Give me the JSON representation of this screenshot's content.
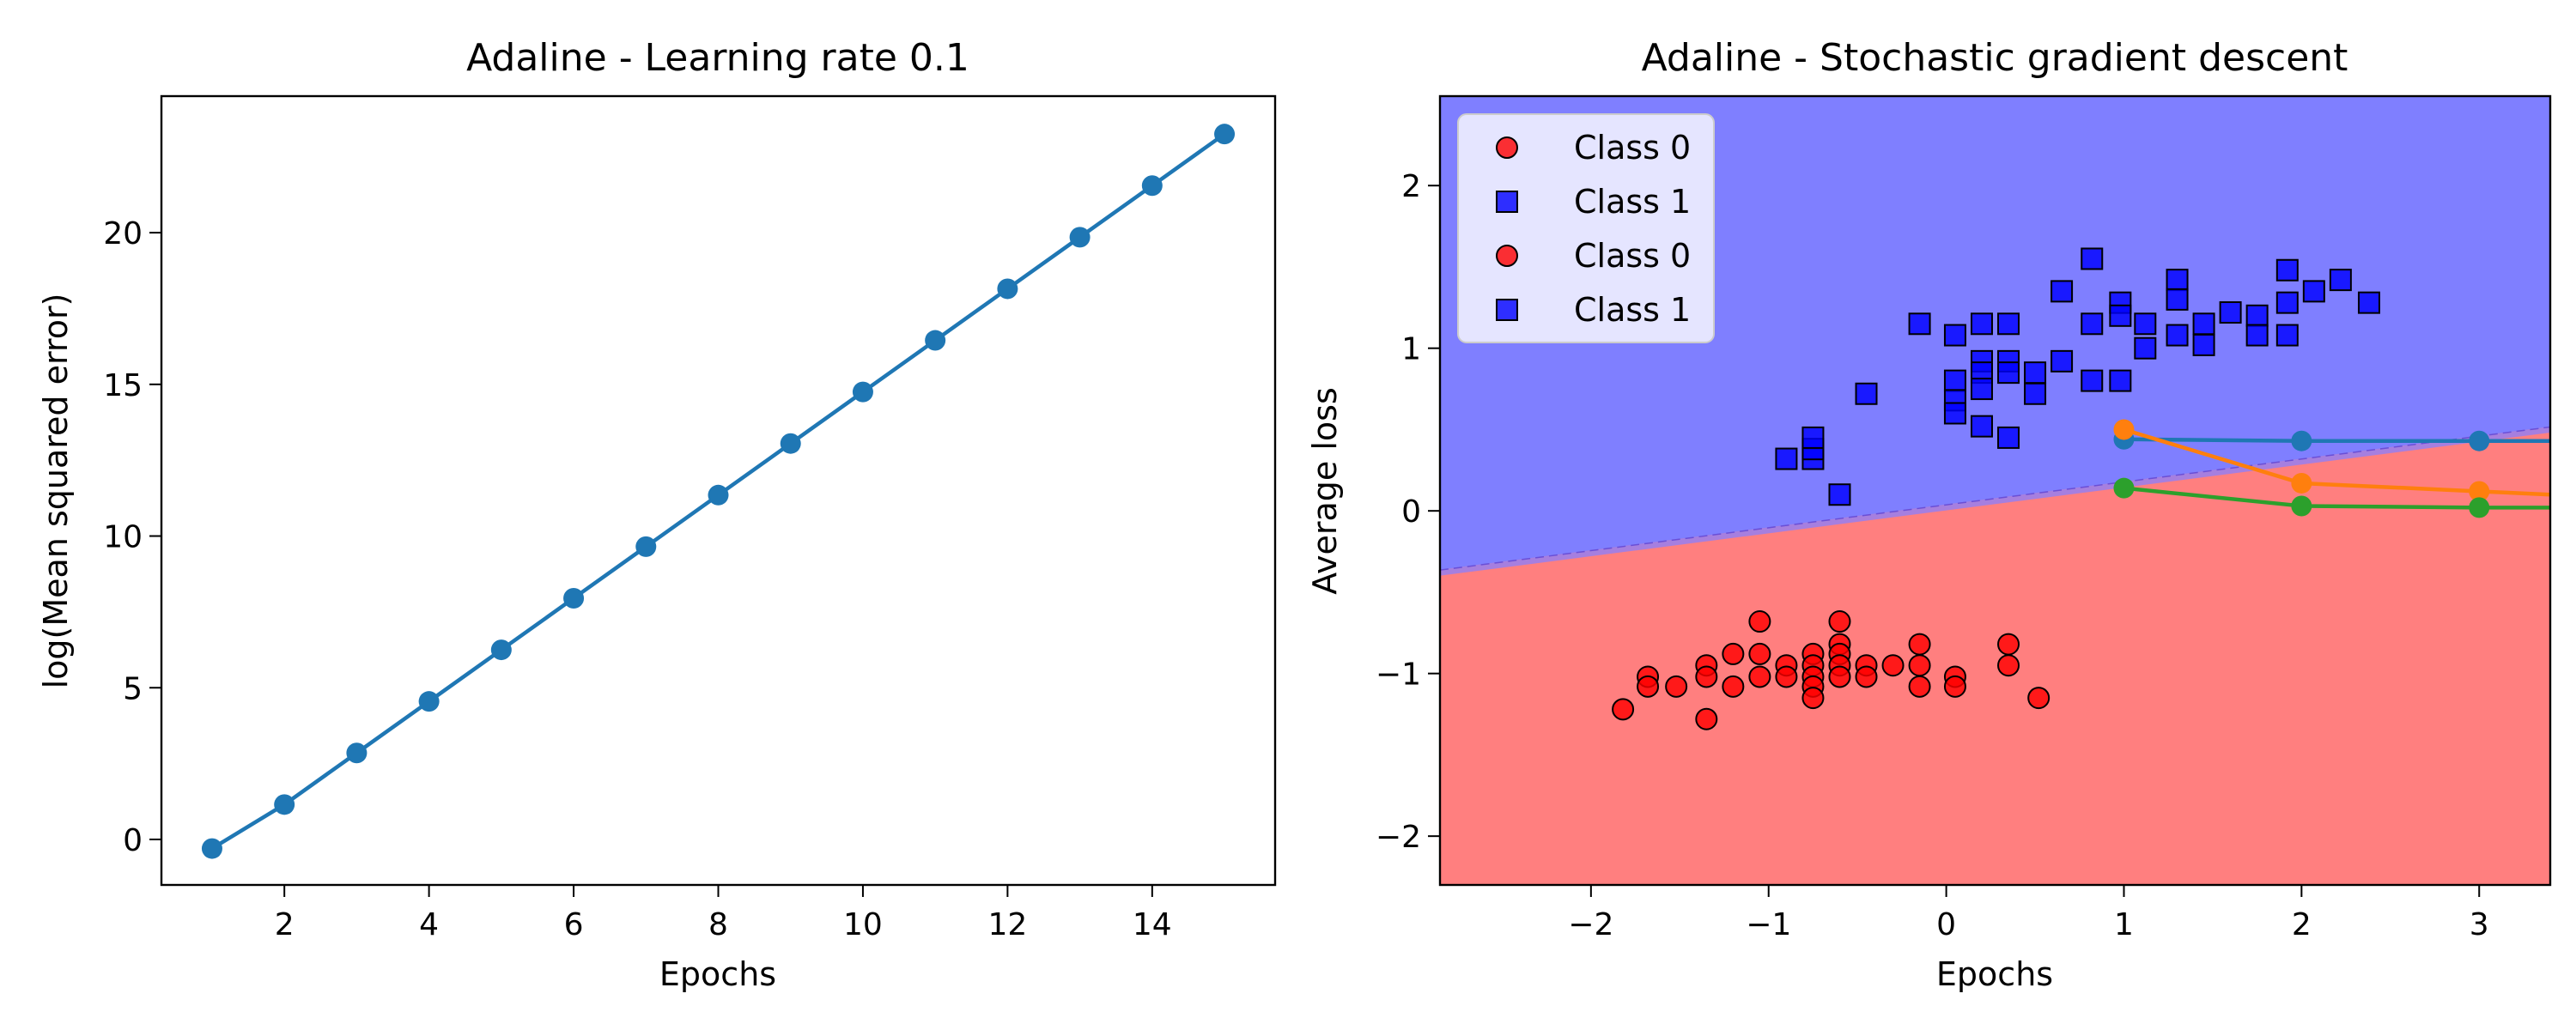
{
  "colors": {
    "line_blue": "#1f77b4",
    "orange": "#ff7f0e",
    "green": "#2ca02c",
    "class0": "#ff0000",
    "class1": "#0000ff",
    "region_class0": "#ff7f7f",
    "region_class1": "#7f7fff",
    "boundary": "#a67fdf"
  },
  "chart_data": [
    {
      "type": "line",
      "title": "Adaline - Learning rate 0.1",
      "xlabel": "Epochs",
      "ylabel": "log(Mean squared error)",
      "xlim": [
        0.3,
        15.7
      ],
      "ylim": [
        -1.5,
        24.5
      ],
      "xticks": [
        2,
        4,
        6,
        8,
        10,
        12,
        14
      ],
      "yticks": [
        0,
        5,
        10,
        15,
        20
      ],
      "grid": false,
      "x": [
        1,
        2,
        3,
        4,
        5,
        6,
        7,
        8,
        9,
        10,
        11,
        12,
        13,
        14,
        15
      ],
      "y": [
        -0.3,
        1.15,
        2.85,
        4.55,
        6.25,
        7.95,
        9.65,
        11.35,
        13.05,
        14.75,
        16.45,
        18.15,
        19.85,
        21.55,
        23.25
      ],
      "marker": "circle"
    },
    {
      "type": "scatter",
      "title": "Adaline - Stochastic gradient descent",
      "xlabel": "Epochs",
      "ylabel": "Average loss",
      "xlim": [
        -2.85,
        3.4
      ],
      "ylim": [
        -2.3,
        2.55
      ],
      "xticks": [
        -2,
        -1,
        0,
        1,
        2,
        3
      ],
      "xtick_labels": [
        "−2",
        "−1",
        "0",
        "1",
        "2",
        "3"
      ],
      "yticks": [
        -2,
        -1,
        0,
        1,
        2
      ],
      "ytick_labels": [
        "−2",
        "−1",
        "0",
        "1",
        "2"
      ],
      "grid": false,
      "legend_position": "top-left",
      "legend": [
        "Class 0",
        "Class 1",
        "Class 0",
        "Class 1"
      ],
      "decision_boundary": [
        [
          -2.85,
          -0.38
        ],
        [
          3.4,
          0.5
        ]
      ],
      "regions": [
        {
          "label": "Class 1",
          "side": "above"
        },
        {
          "label": "Class 0",
          "side": "below"
        }
      ],
      "scatter_series": [
        {
          "name": "Class 0",
          "marker": "circle",
          "points": [
            [
              -1.82,
              -1.22
            ],
            [
              -1.68,
              -1.02
            ],
            [
              -1.68,
              -1.08
            ],
            [
              -1.52,
              -1.08
            ],
            [
              -1.35,
              -1.28
            ],
            [
              -1.35,
              -0.95
            ],
            [
              -1.35,
              -1.02
            ],
            [
              -1.2,
              -0.88
            ],
            [
              -1.2,
              -1.08
            ],
            [
              -1.05,
              -0.68
            ],
            [
              -1.05,
              -0.88
            ],
            [
              -1.05,
              -1.02
            ],
            [
              -0.9,
              -0.95
            ],
            [
              -0.9,
              -1.02
            ],
            [
              -0.75,
              -0.88
            ],
            [
              -0.75,
              -0.95
            ],
            [
              -0.75,
              -1.02
            ],
            [
              -0.75,
              -1.08
            ],
            [
              -0.75,
              -1.15
            ],
            [
              -0.6,
              -0.68
            ],
            [
              -0.6,
              -0.82
            ],
            [
              -0.6,
              -0.88
            ],
            [
              -0.6,
              -0.95
            ],
            [
              -0.6,
              -1.02
            ],
            [
              -0.45,
              -0.95
            ],
            [
              -0.45,
              -1.02
            ],
            [
              -0.3,
              -0.95
            ],
            [
              -0.15,
              -0.82
            ],
            [
              -0.15,
              -0.95
            ],
            [
              -0.15,
              -1.08
            ],
            [
              0.05,
              -1.02
            ],
            [
              0.05,
              -1.08
            ],
            [
              0.35,
              -0.82
            ],
            [
              0.35,
              -0.95
            ],
            [
              0.52,
              -1.15
            ]
          ]
        },
        {
          "name": "Class 1",
          "marker": "square",
          "points": [
            [
              -0.9,
              0.32
            ],
            [
              -0.75,
              0.32
            ],
            [
              -0.75,
              0.38
            ],
            [
              -0.75,
              0.45
            ],
            [
              -0.6,
              0.1
            ],
            [
              -0.45,
              0.72
            ],
            [
              -0.15,
              1.15
            ],
            [
              0.05,
              1.08
            ],
            [
              0.05,
              0.8
            ],
            [
              0.05,
              0.68
            ],
            [
              0.05,
              0.6
            ],
            [
              0.2,
              1.15
            ],
            [
              0.2,
              0.92
            ],
            [
              0.2,
              0.85
            ],
            [
              0.2,
              0.75
            ],
            [
              0.2,
              0.52
            ],
            [
              0.35,
              1.15
            ],
            [
              0.35,
              0.92
            ],
            [
              0.35,
              0.85
            ],
            [
              0.35,
              0.45
            ],
            [
              0.5,
              0.85
            ],
            [
              0.5,
              0.72
            ],
            [
              0.65,
              1.35
            ],
            [
              0.65,
              0.92
            ],
            [
              0.82,
              1.55
            ],
            [
              0.82,
              1.15
            ],
            [
              0.82,
              0.8
            ],
            [
              0.98,
              1.28
            ],
            [
              0.98,
              1.2
            ],
            [
              0.98,
              0.8
            ],
            [
              1.12,
              1.15
            ],
            [
              1.12,
              1.0
            ],
            [
              1.3,
              1.42
            ],
            [
              1.3,
              1.3
            ],
            [
              1.3,
              1.08
            ],
            [
              1.45,
              1.15
            ],
            [
              1.45,
              1.02
            ],
            [
              1.6,
              1.22
            ],
            [
              1.75,
              1.2
            ],
            [
              1.75,
              1.08
            ],
            [
              1.92,
              1.48
            ],
            [
              1.92,
              1.28
            ],
            [
              1.92,
              1.08
            ],
            [
              2.07,
              1.35
            ],
            [
              2.22,
              1.42
            ],
            [
              2.38,
              1.28
            ]
          ]
        }
      ],
      "line_series": [
        {
          "color_key": "line_blue",
          "x": [
            1,
            2,
            3,
            3.4
          ],
          "y": [
            0.44,
            0.43,
            0.43,
            0.43
          ]
        },
        {
          "color_key": "orange",
          "x": [
            1,
            2,
            3,
            3.4
          ],
          "y": [
            0.5,
            0.17,
            0.12,
            0.1
          ]
        },
        {
          "color_key": "green",
          "x": [
            1,
            2,
            3,
            3.4
          ],
          "y": [
            0.14,
            0.03,
            0.02,
            0.02
          ]
        }
      ]
    }
  ]
}
